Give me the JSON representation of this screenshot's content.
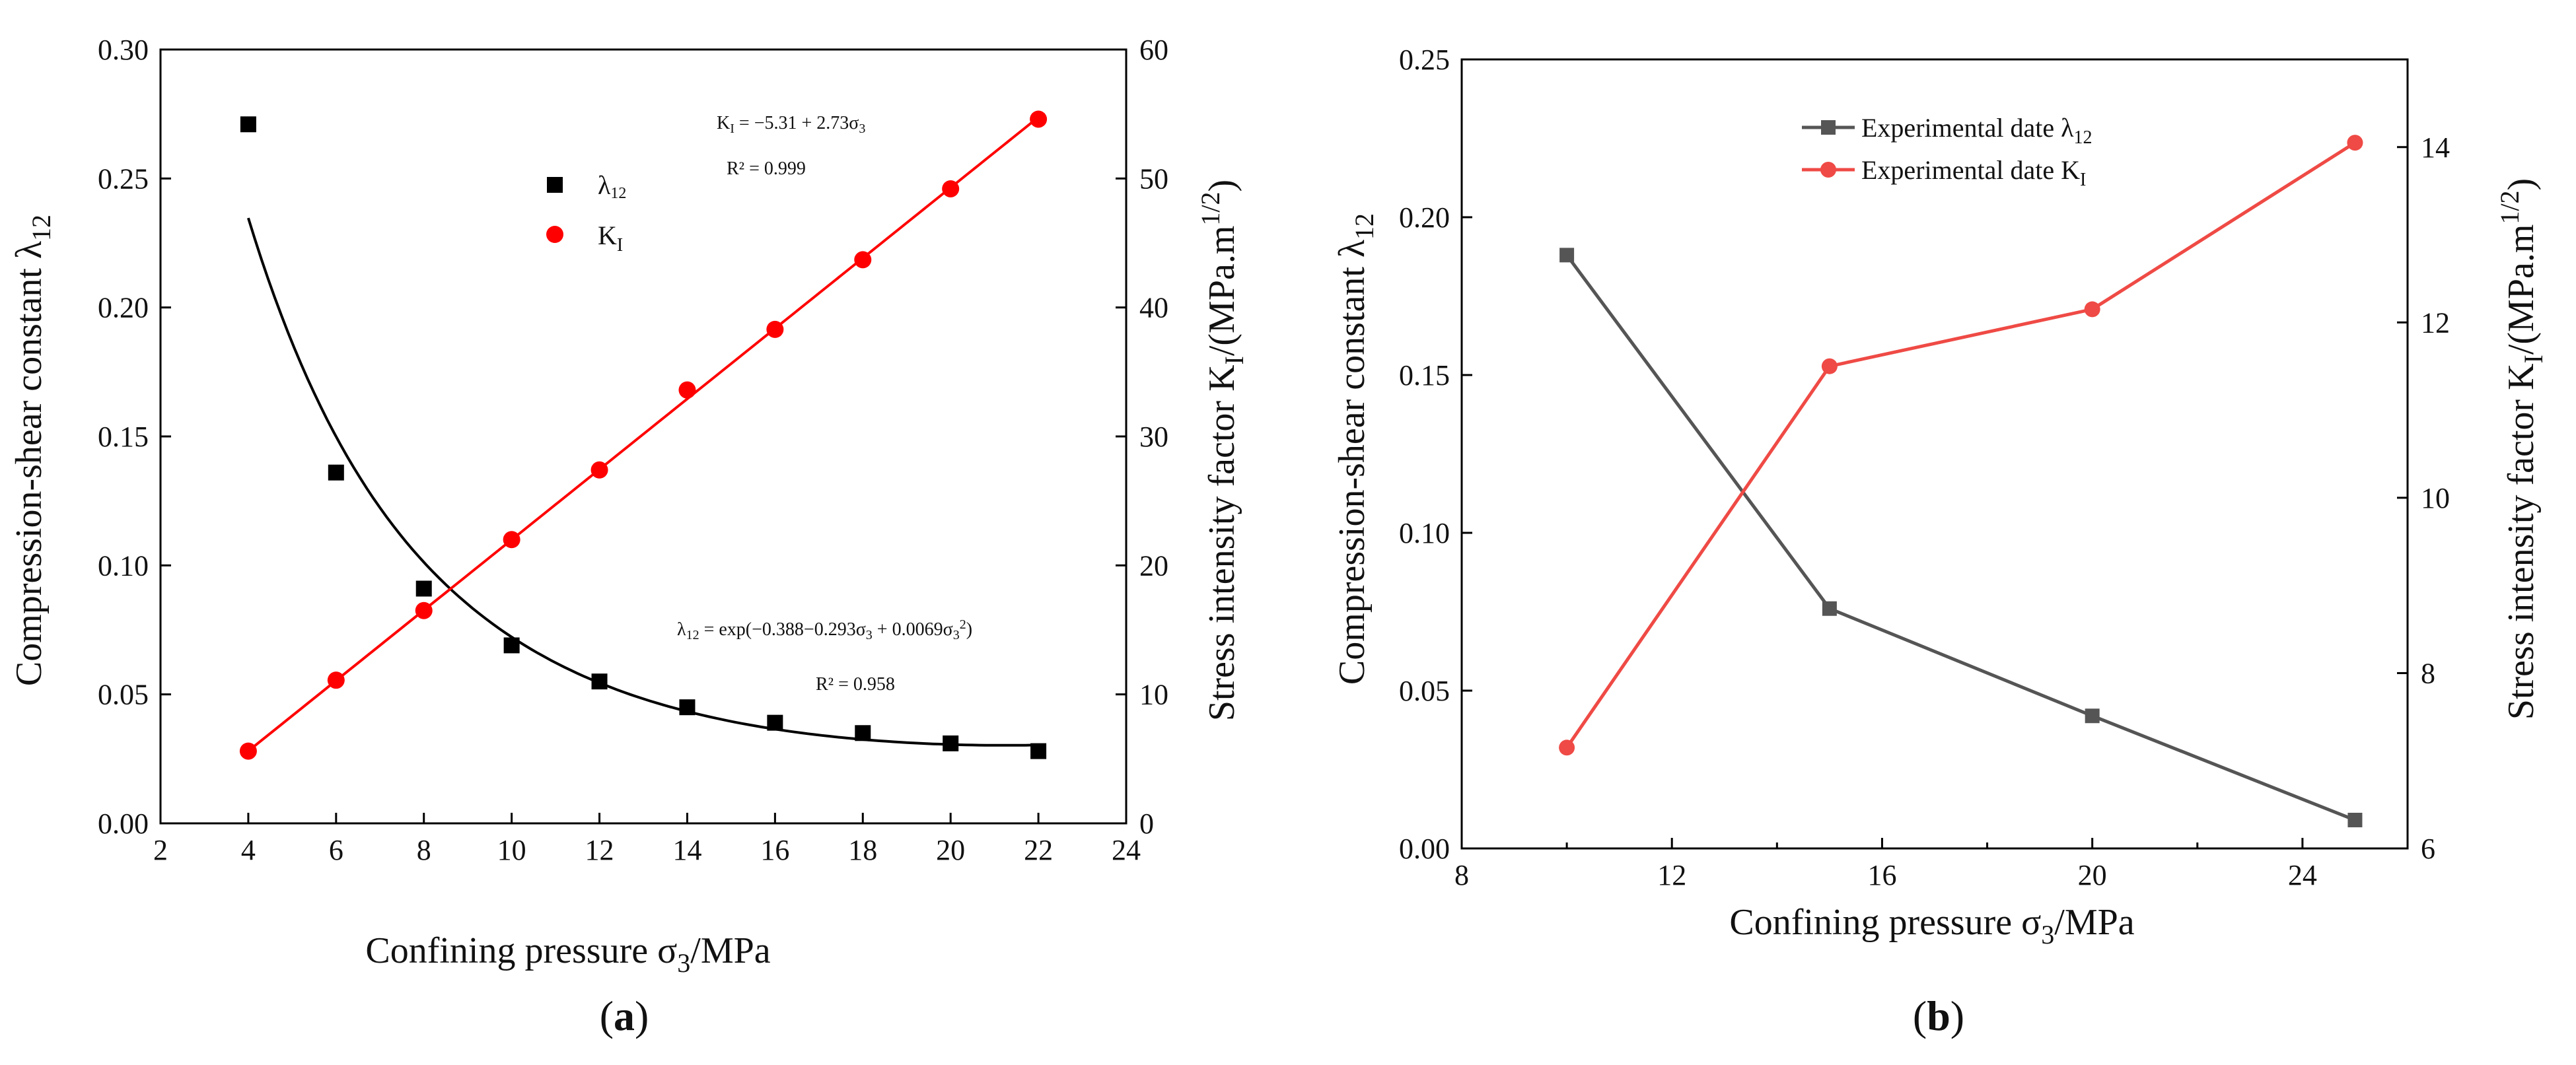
{
  "chart_data": [
    {
      "type": "scatter",
      "panel_label": "(a)",
      "panel_letter": "a",
      "xlabel": "Confining pressure  σ3/MPa",
      "xlabel_parts": {
        "main": "Confining pressure  σ",
        "sub": "3",
        "tail": "/MPa"
      },
      "ylabel_left": "Compression-shear constant  λ12",
      "ylabel_left_parts": {
        "main": "Compression-shear constant  λ",
        "sub": "12"
      },
      "ylabel_right": "Stress intensity factor KI/(MPa.m1/2)",
      "ylabel_right_parts": {
        "main": "Stress intensity factor K",
        "sub": "I",
        "mid": "/(MPa.m",
        "sup": "1/2",
        "tail": ")"
      },
      "xlim": [
        2,
        24
      ],
      "ylim_left": [
        0,
        0.3
      ],
      "ylim_right": [
        0,
        60
      ],
      "x_ticks": [
        "2",
        "4",
        "6",
        "8",
        "10",
        "12",
        "14",
        "16",
        "18",
        "20",
        "22",
        "24"
      ],
      "y_left_ticks": [
        "0.00",
        "0.05",
        "0.10",
        "0.15",
        "0.20",
        "0.25",
        "0.30"
      ],
      "y_right_ticks": [
        "0",
        "10",
        "20",
        "30",
        "40",
        "50",
        "60"
      ],
      "legend": [
        {
          "label": "λ12",
          "label_parts": {
            "main": "λ",
            "sub": "12"
          },
          "marker": "square",
          "color": "#000000"
        },
        {
          "label": "KI",
          "label_parts": {
            "main": "K",
            "sub": "I"
          },
          "marker": "circle",
          "color": "#ff0000"
        }
      ],
      "series": [
        {
          "name": "λ12",
          "axis": "left",
          "color": "#000000",
          "marker": "square",
          "x": [
            4,
            6,
            8,
            10,
            12,
            14,
            16,
            18,
            20,
            22
          ],
          "values": [
            0.271,
            0.136,
            0.091,
            0.069,
            0.055,
            0.045,
            0.039,
            0.035,
            0.031,
            0.028
          ]
        },
        {
          "name": "KI",
          "axis": "right",
          "color": "#ff0000",
          "marker": "circle",
          "x": [
            4,
            6,
            8,
            10,
            12,
            14,
            16,
            18,
            20,
            22
          ],
          "values": [
            5.6,
            11.1,
            16.5,
            22.0,
            27.4,
            33.6,
            38.3,
            43.7,
            49.2,
            54.6
          ]
        }
      ],
      "fits": [
        {
          "name": "λ12 fit",
          "axis": "left",
          "color": "#000000",
          "model": "exp",
          "coefficients": [
            -0.388,
            -0.293,
            0.0069
          ],
          "x_range": [
            4,
            22
          ],
          "equation": "λ12 = exp(−0.388−0.293σ3 + 0.0069σ3²)",
          "equation_parts": {
            "a": "λ",
            "b": "12",
            "c": " = exp(−0.388−0.293σ",
            "d": "3",
            "e": " + 0.0069σ",
            "f": "3",
            "g": "2",
            "h": ")"
          },
          "r2": "R² = 0.958"
        },
        {
          "name": "KI fit",
          "axis": "right",
          "color": "#ff0000",
          "model": "linear",
          "coefficients": [
            -5.31,
            2.73
          ],
          "x_range": [
            4,
            22
          ],
          "equation": "KI =  −5.31 + 2.73σ3",
          "equation_parts": {
            "a": "K",
            "b": "I",
            "c": " =  −5.31 + 2.73σ",
            "d": "3"
          },
          "r2": "R² = 0.999"
        }
      ]
    },
    {
      "type": "line",
      "panel_label": "(b)",
      "panel_letter": "b",
      "xlabel": "Confining pressure σ3/MPa",
      "xlabel_parts": {
        "main": "Confining pressure σ",
        "sub": "3",
        "tail": "/MPa"
      },
      "ylabel_left": "Compression-shear constant λ12",
      "ylabel_left_parts": {
        "main": "Compression-shear constant λ",
        "sub": "12"
      },
      "ylabel_right": "Stress intensity factor KI/(MPa.m1/2)",
      "ylabel_right_parts": {
        "main": "Stress intensity factor K",
        "sub": "I",
        "mid": "/(MPa.m",
        "sup": "1/2",
        "tail": ")"
      },
      "xlim": [
        8,
        26
      ],
      "ylim_left": [
        0,
        0.25
      ],
      "ylim_right": [
        6,
        15
      ],
      "x_ticks": [
        "8",
        "12",
        "16",
        "20",
        "24"
      ],
      "y_left_ticks": [
        "0.00",
        "0.05",
        "0.10",
        "0.15",
        "0.20",
        "0.25"
      ],
      "y_right_ticks": [
        "6",
        "8",
        "10",
        "12",
        "14"
      ],
      "legend": [
        {
          "label": "Experimental date λ12",
          "label_parts": {
            "main": "Experimental date λ",
            "sub": "12"
          },
          "marker": "square",
          "color": "#555555"
        },
        {
          "label": "Experimental date KI",
          "label_parts": {
            "main": "Experimental date K",
            "sub": "I"
          },
          "marker": "circle",
          "color": "#ef4a45"
        }
      ],
      "series": [
        {
          "name": "Experimental date λ12",
          "axis": "left",
          "color": "#555555",
          "marker": "square",
          "x": [
            10,
            15,
            20,
            25
          ],
          "values": [
            0.188,
            0.076,
            0.042,
            0.009
          ]
        },
        {
          "name": "Experimental date KI",
          "axis": "right",
          "color": "#ef4a45",
          "marker": "circle",
          "x": [
            10,
            15,
            20,
            25
          ],
          "values": [
            7.15,
            11.5,
            12.15,
            14.05
          ]
        }
      ]
    }
  ]
}
